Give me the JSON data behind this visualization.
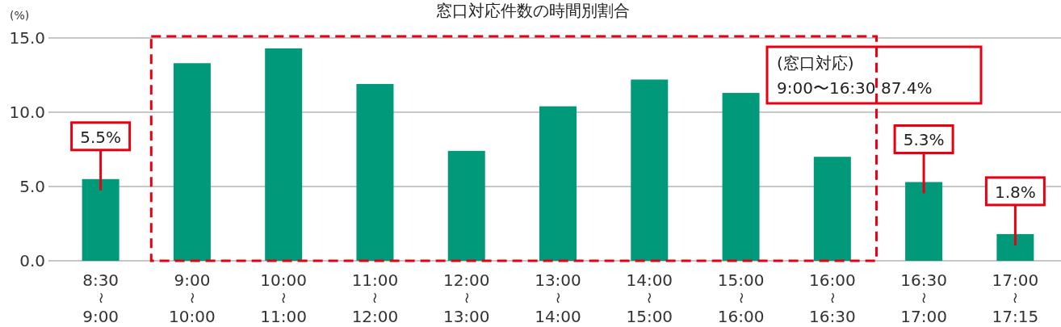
{
  "chart_data": {
    "type": "bar",
    "title": "窓口対応件数の時間別割合",
    "ylabel": "(%)",
    "categories": [
      "8:30〜9:00",
      "9:00〜10:00",
      "10:00〜11:00",
      "11:00〜12:00",
      "12:00〜13:00",
      "13:00〜14:00",
      "14:00〜15:00",
      "15:00〜16:00",
      "16:00〜16:30",
      "16:30〜17:00",
      "17:00〜17:15"
    ],
    "values": [
      5.5,
      13.3,
      14.3,
      11.9,
      7.4,
      10.4,
      12.2,
      11.3,
      7.0,
      5.3,
      1.8
    ],
    "color": "#009a7a",
    "value_labels": [
      "5.5%",
      null,
      null,
      null,
      null,
      null,
      null,
      null,
      null,
      "5.3%",
      "1.8%"
    ],
    "ylim": [
      0,
      15
    ],
    "yticks": [
      {
        "value": 0,
        "label": "0.0"
      },
      {
        "value": 5,
        "label": "5.0"
      },
      {
        "value": 10,
        "label": "10.0"
      },
      {
        "value": 15,
        "label": "15.0"
      }
    ],
    "grid": "y",
    "annotations": [
      "(窓口対応)",
      "9:00〜16:30 87.4%"
    ]
  }
}
